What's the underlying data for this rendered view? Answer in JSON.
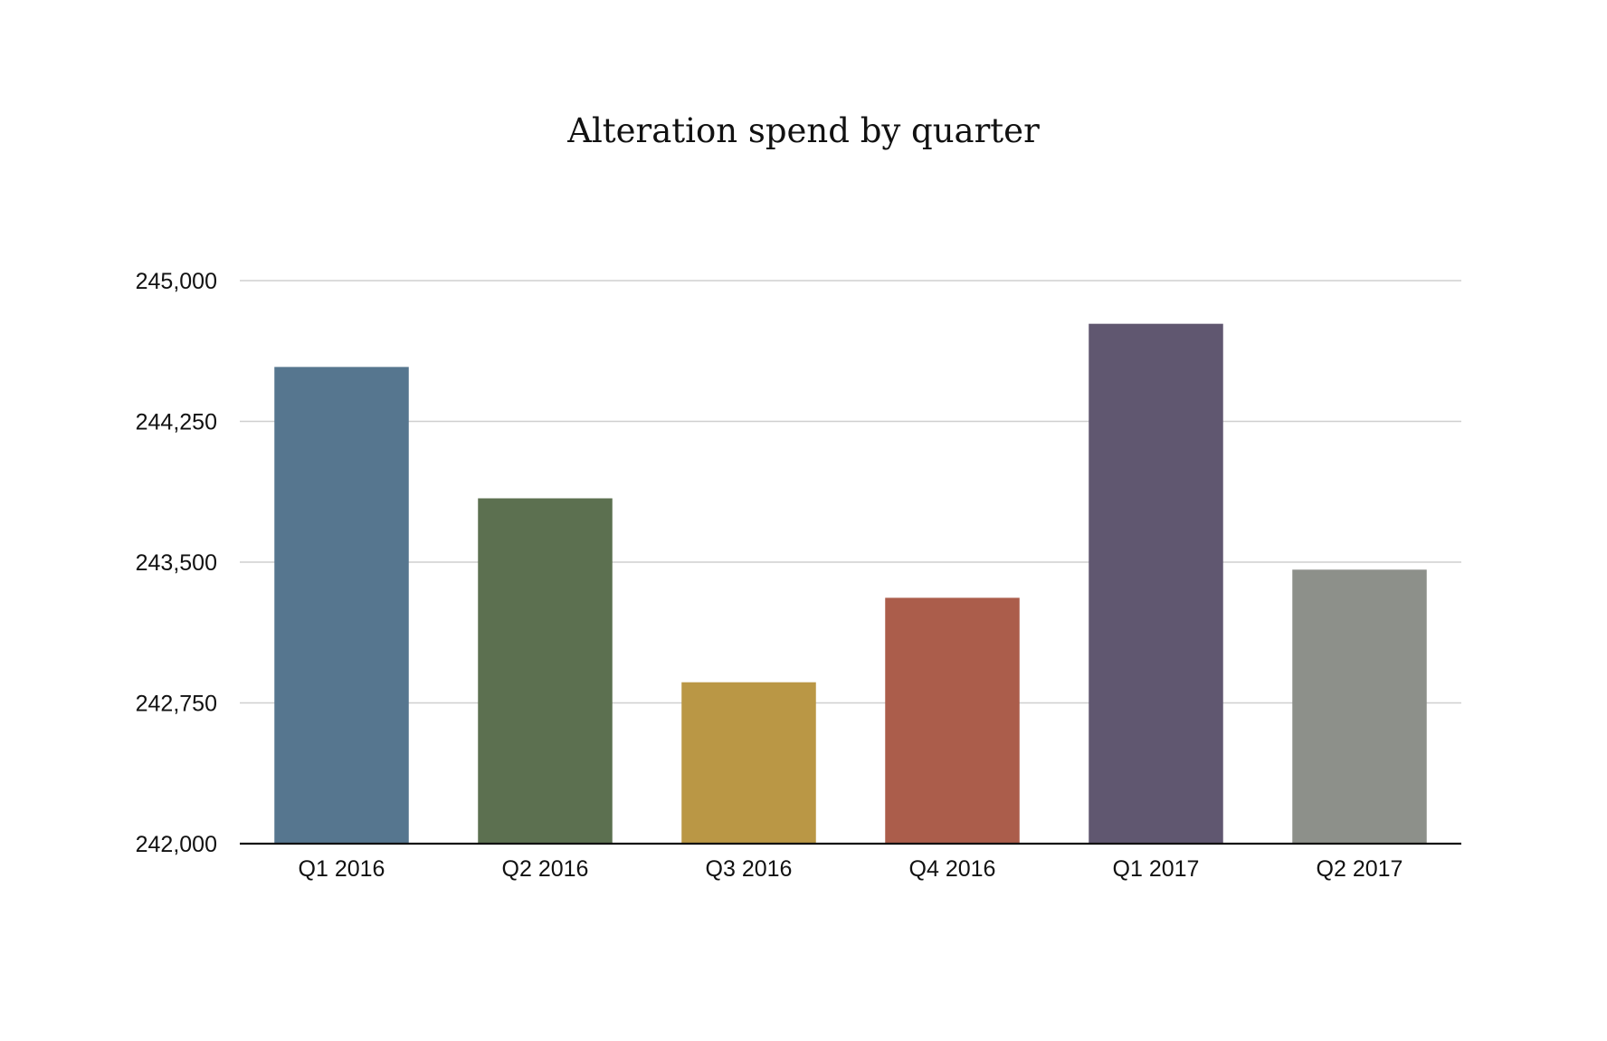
{
  "chart_data": {
    "type": "bar",
    "title": "Alteration spend by quarter",
    "xlabel": "",
    "ylabel": "",
    "categories": [
      "Q1 2016",
      "Q2 2016",
      "Q3 2016",
      "Q4 2016",
      "Q1 2017",
      "Q2 2017"
    ],
    "values": [
      244540,
      243840,
      242860,
      243310,
      244770,
      243460
    ],
    "colors": [
      "#56768f",
      "#5c7050",
      "#ba9745",
      "#ab5d4b",
      "#605770",
      "#8d908a"
    ],
    "ylim": [
      242000,
      245000
    ],
    "yticks": [
      242000,
      242750,
      243500,
      244250,
      245000
    ],
    "ytick_labels": [
      "242,000",
      "242,750",
      "243,500",
      "244,250",
      "245,000"
    ],
    "grid": true,
    "legend": "none"
  }
}
